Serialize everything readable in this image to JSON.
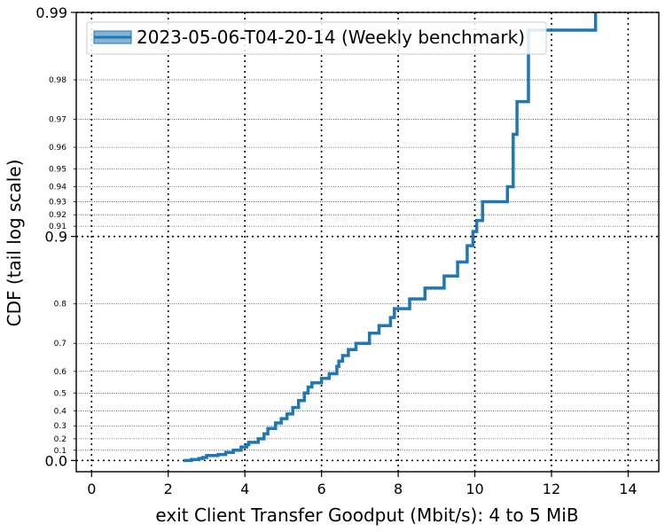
{
  "chart_data": {
    "type": "line",
    "title": "",
    "xlabel": "exit Client Transfer Goodput (Mbit/s): 4 to 5 MiB",
    "ylabel": "CDF (tail log scale)",
    "xlim": [
      -0.4,
      14.8
    ],
    "y_scale": "tail-log (logit-like: -log10(1-p))",
    "grid": true,
    "legend_placement": "top-left",
    "x_ticks": [
      0,
      2,
      4,
      6,
      8,
      10,
      12,
      14
    ],
    "x_tick_labels": [
      "0",
      "2",
      "4",
      "6",
      "8",
      "10",
      "12",
      "14"
    ],
    "y_major_ticks": [
      0.0,
      0.9,
      0.99
    ],
    "y_major_tick_labels": [
      "0.0",
      "0.9",
      "0.99"
    ],
    "y_minor_ticks": [
      0.1,
      0.2,
      0.3,
      0.4,
      0.5,
      0.6,
      0.7,
      0.8,
      0.91,
      0.92,
      0.93,
      0.94,
      0.95,
      0.96,
      0.97,
      0.98
    ],
    "y_minor_tick_labels": [
      "0.1",
      "0.2",
      "0.3",
      "0.4",
      "0.5",
      "0.6",
      "0.7",
      "0.8",
      "0.91",
      "0.92",
      "0.93",
      "0.94",
      "0.95",
      "0.96",
      "0.97",
      "0.98"
    ],
    "series": [
      {
        "name": "2023-05-06-T04-20-14 (Weekly benchmark)",
        "color": "#1f77b4",
        "x": [
          2.4,
          2.6,
          2.8,
          2.9,
          3.0,
          3.3,
          3.5,
          3.7,
          3.9,
          4.05,
          4.1,
          4.35,
          4.5,
          4.6,
          4.8,
          4.95,
          5.1,
          5.25,
          5.4,
          5.55,
          5.65,
          5.75,
          6.0,
          6.2,
          6.4,
          6.45,
          6.55,
          6.7,
          6.9,
          7.25,
          7.5,
          7.8,
          7.9,
          8.3,
          8.7,
          9.2,
          9.55,
          9.8,
          9.95,
          10.05,
          10.2,
          10.85,
          11.0,
          11.1,
          11.4,
          13.15
        ],
        "y": [
          0.0,
          0.01,
          0.02,
          0.03,
          0.05,
          0.06,
          0.08,
          0.1,
          0.13,
          0.15,
          0.17,
          0.2,
          0.24,
          0.28,
          0.32,
          0.35,
          0.38,
          0.42,
          0.46,
          0.5,
          0.53,
          0.55,
          0.57,
          0.59,
          0.62,
          0.64,
          0.66,
          0.68,
          0.7,
          0.73,
          0.75,
          0.77,
          0.79,
          0.81,
          0.83,
          0.85,
          0.87,
          0.89,
          0.905,
          0.915,
          0.93,
          0.94,
          0.965,
          0.975,
          0.988,
          0.99
        ]
      }
    ]
  }
}
